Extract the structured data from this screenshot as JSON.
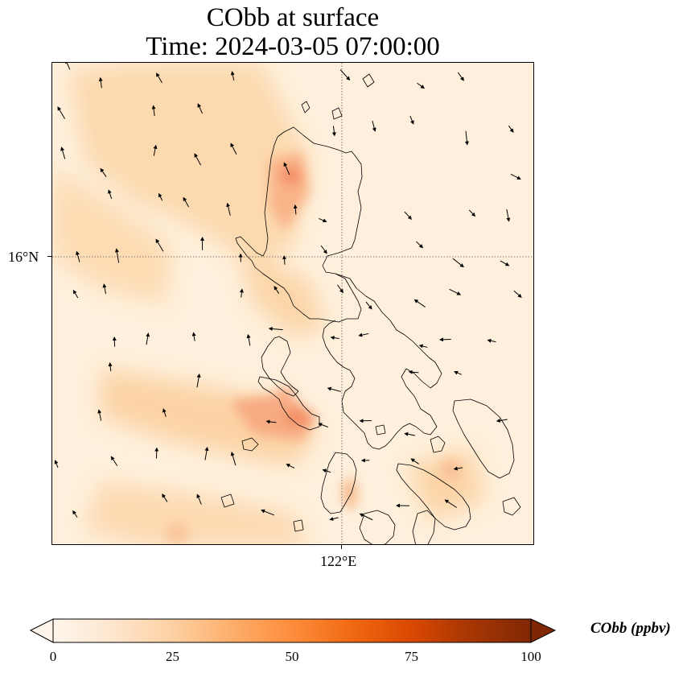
{
  "title": {
    "line1": "CObb at surface",
    "line2": "Time: 2024-03-05 07:00:00"
  },
  "axes": {
    "lat_tick": "16°N",
    "lon_tick": "122°E"
  },
  "colorbar": {
    "label": "CObb (ppbv)",
    "ticks": [
      "0",
      "25",
      "50",
      "75",
      "100"
    ],
    "min": 0,
    "max": 100,
    "extend": "both",
    "colormap": "Oranges",
    "colors": [
      "#fff5eb",
      "#fee6ce",
      "#fdd0a2",
      "#fdae6b",
      "#fd8d3c",
      "#f16913",
      "#d94801",
      "#a63603",
      "#7f2704"
    ]
  },
  "map": {
    "gridlines": "dotted",
    "coastline_color": "#000000",
    "wind_vectors": true
  }
}
